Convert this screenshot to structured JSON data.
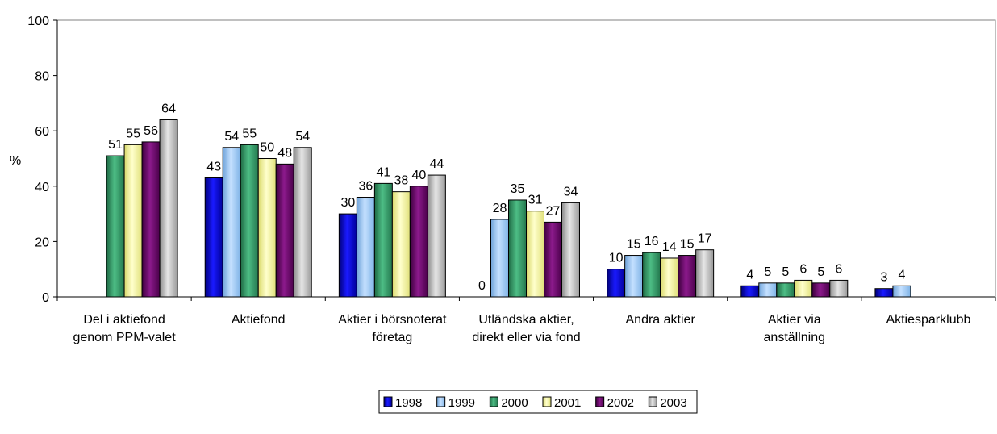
{
  "chart_data": {
    "type": "bar",
    "title": "",
    "xlabel": "",
    "ylabel": "%",
    "ylim": [
      0,
      100
    ],
    "yticks": [
      0,
      20,
      40,
      60,
      80,
      100
    ],
    "grid": false,
    "legend_position": "bottom",
    "categories": [
      [
        "Del i aktiefond",
        "genom PPM-valet"
      ],
      [
        "Aktiefond"
      ],
      [
        "Aktier i börsnoterat",
        "företag"
      ],
      [
        "Utländska aktier,",
        "direkt eller via fond"
      ],
      [
        "Andra aktier"
      ],
      [
        "Aktier via",
        "anställning"
      ],
      [
        "Aktiesparklubb"
      ]
    ],
    "series": [
      {
        "name": "1998",
        "color": "#0000cc",
        "values": [
          null,
          43,
          30,
          0,
          10,
          4,
          3
        ]
      },
      {
        "name": "1999",
        "color": "#99ccff",
        "values": [
          null,
          54,
          36,
          28,
          15,
          5,
          4
        ]
      },
      {
        "name": "2000",
        "color": "#339966",
        "values": [
          51,
          55,
          41,
          35,
          16,
          5,
          null
        ]
      },
      {
        "name": "2001",
        "color": "#ffff99",
        "values": [
          55,
          50,
          38,
          31,
          14,
          6,
          null
        ]
      },
      {
        "name": "2002",
        "color": "#660066",
        "values": [
          56,
          48,
          40,
          27,
          15,
          5,
          null
        ]
      },
      {
        "name": "2003",
        "color": "#c0c0c0",
        "values": [
          64,
          54,
          44,
          34,
          17,
          6,
          null
        ]
      }
    ]
  }
}
